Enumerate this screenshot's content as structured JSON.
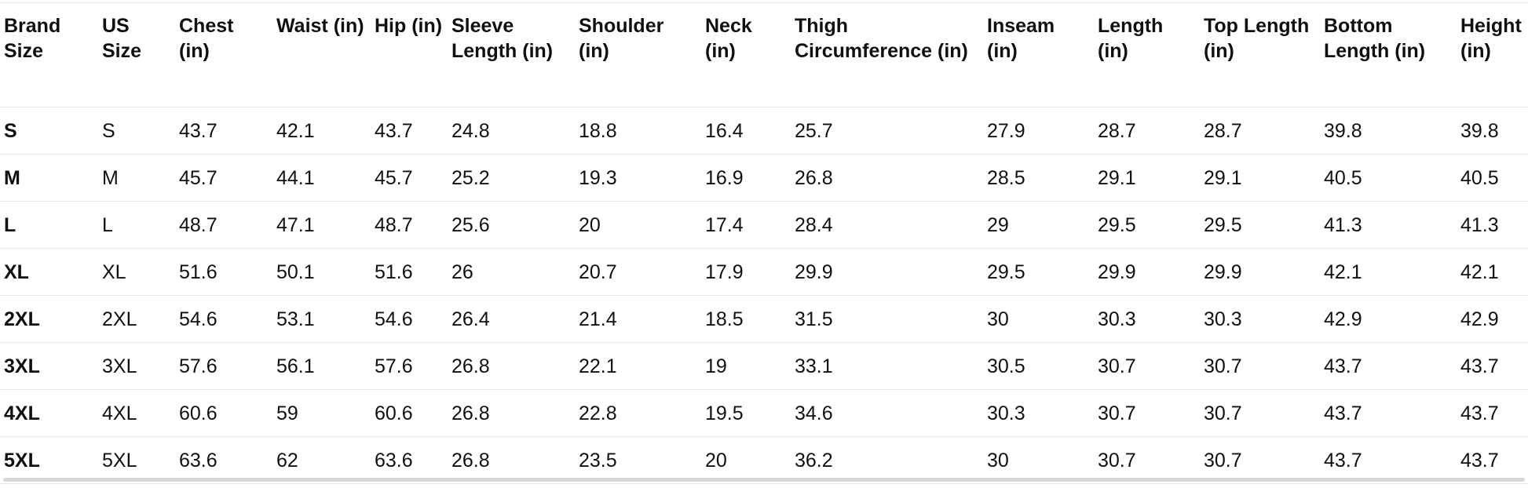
{
  "table": {
    "name": "size-chart",
    "headers": [
      "Brand Size",
      "US Size",
      "Chest (in)",
      "Waist (in)",
      "Hip (in)",
      "Sleeve Length (in)",
      "Shoulder (in)",
      "Neck (in)",
      "Thigh Circumference (in)",
      "Inseam (in)",
      "Length (in)",
      "Top Length (in)",
      "Bottom Length (in)",
      "Height (in)"
    ],
    "rows": [
      [
        "S",
        "S",
        "43.7",
        "42.1",
        "43.7",
        "24.8",
        "18.8",
        "16.4",
        "25.7",
        "27.9",
        "28.7",
        "28.7",
        "39.8",
        "39.8"
      ],
      [
        "M",
        "M",
        "45.7",
        "44.1",
        "45.7",
        "25.2",
        "19.3",
        "16.9",
        "26.8",
        "28.5",
        "29.1",
        "29.1",
        "40.5",
        "40.5"
      ],
      [
        "L",
        "L",
        "48.7",
        "47.1",
        "48.7",
        "25.6",
        "20",
        "17.4",
        "28.4",
        "29",
        "29.5",
        "29.5",
        "41.3",
        "41.3"
      ],
      [
        "XL",
        "XL",
        "51.6",
        "50.1",
        "51.6",
        "26",
        "20.7",
        "17.9",
        "29.9",
        "29.5",
        "29.9",
        "29.9",
        "42.1",
        "42.1"
      ],
      [
        "2XL",
        "2XL",
        "54.6",
        "53.1",
        "54.6",
        "26.4",
        "21.4",
        "18.5",
        "31.5",
        "30",
        "30.3",
        "30.3",
        "42.9",
        "42.9"
      ],
      [
        "3XL",
        "3XL",
        "57.6",
        "56.1",
        "57.6",
        "26.8",
        "22.1",
        "19",
        "33.1",
        "30.5",
        "30.7",
        "30.7",
        "43.7",
        "43.7"
      ],
      [
        "4XL",
        "4XL",
        "60.6",
        "59",
        "60.6",
        "26.8",
        "22.8",
        "19.5",
        "34.6",
        "30.3",
        "30.7",
        "30.7",
        "43.7",
        "43.7"
      ],
      [
        "5XL",
        "5XL",
        "63.6",
        "62",
        "63.6",
        "26.8",
        "23.5",
        "20",
        "36.2",
        "30",
        "30.7",
        "30.7",
        "43.7",
        "43.7"
      ]
    ]
  },
  "colors": {
    "text": "#0F1111",
    "row_border": "#e7e7e7",
    "scrollbar_thumb": "#d5d9d9"
  },
  "scrollbar": {
    "orientation": "horizontal"
  }
}
